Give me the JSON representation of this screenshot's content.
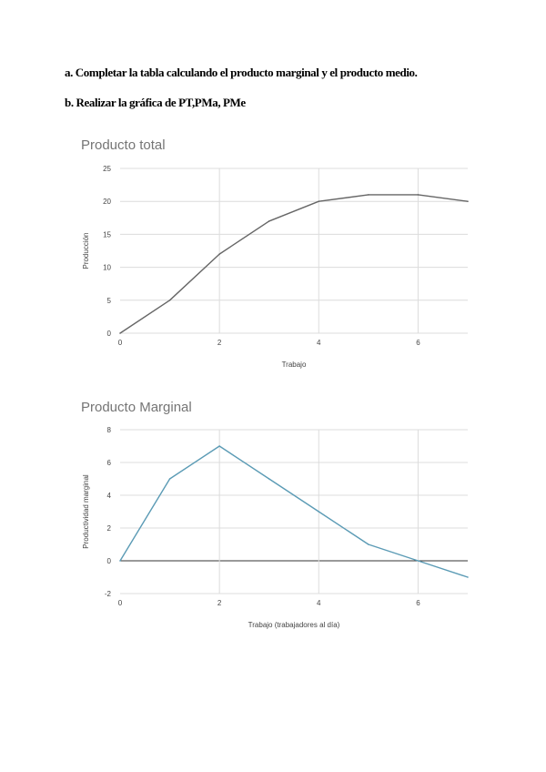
{
  "instructions": {
    "a": "a. Completar la tabla calculando el producto marginal y el producto  medio.",
    "b": "b. Realizar la gráfica de PT,PMa, PMe"
  },
  "chart_data": [
    {
      "type": "line",
      "title": "Producto total",
      "xlabel": "Trabajo",
      "ylabel": "Producción",
      "x": [
        0,
        1,
        2,
        3,
        4,
        5,
        6,
        7
      ],
      "series": [
        {
          "values": [
            0,
            5,
            12,
            17,
            20,
            21,
            21,
            20
          ]
        }
      ],
      "xlim": [
        0,
        7
      ],
      "ylim": [
        0,
        25
      ],
      "xticks": [
        0,
        2,
        4,
        6
      ],
      "yticks": [
        0,
        5,
        10,
        15,
        20,
        25
      ],
      "grid": true,
      "color": "#666666"
    },
    {
      "type": "line",
      "title": "Producto Marginal",
      "xlabel": "Trabajo (trabajadores al día)",
      "ylabel": "Productividad marginal",
      "x": [
        0,
        1,
        2,
        3,
        4,
        5,
        6,
        7
      ],
      "series": [
        {
          "values": [
            0,
            5,
            7,
            5,
            3,
            1,
            0,
            -1
          ]
        }
      ],
      "xlim": [
        0,
        7
      ],
      "ylim": [
        -2,
        8
      ],
      "xticks": [
        0,
        2,
        4,
        6
      ],
      "yticks": [
        -2,
        0,
        2,
        4,
        6,
        8
      ],
      "grid": true,
      "color": "#5b9bb5"
    }
  ]
}
